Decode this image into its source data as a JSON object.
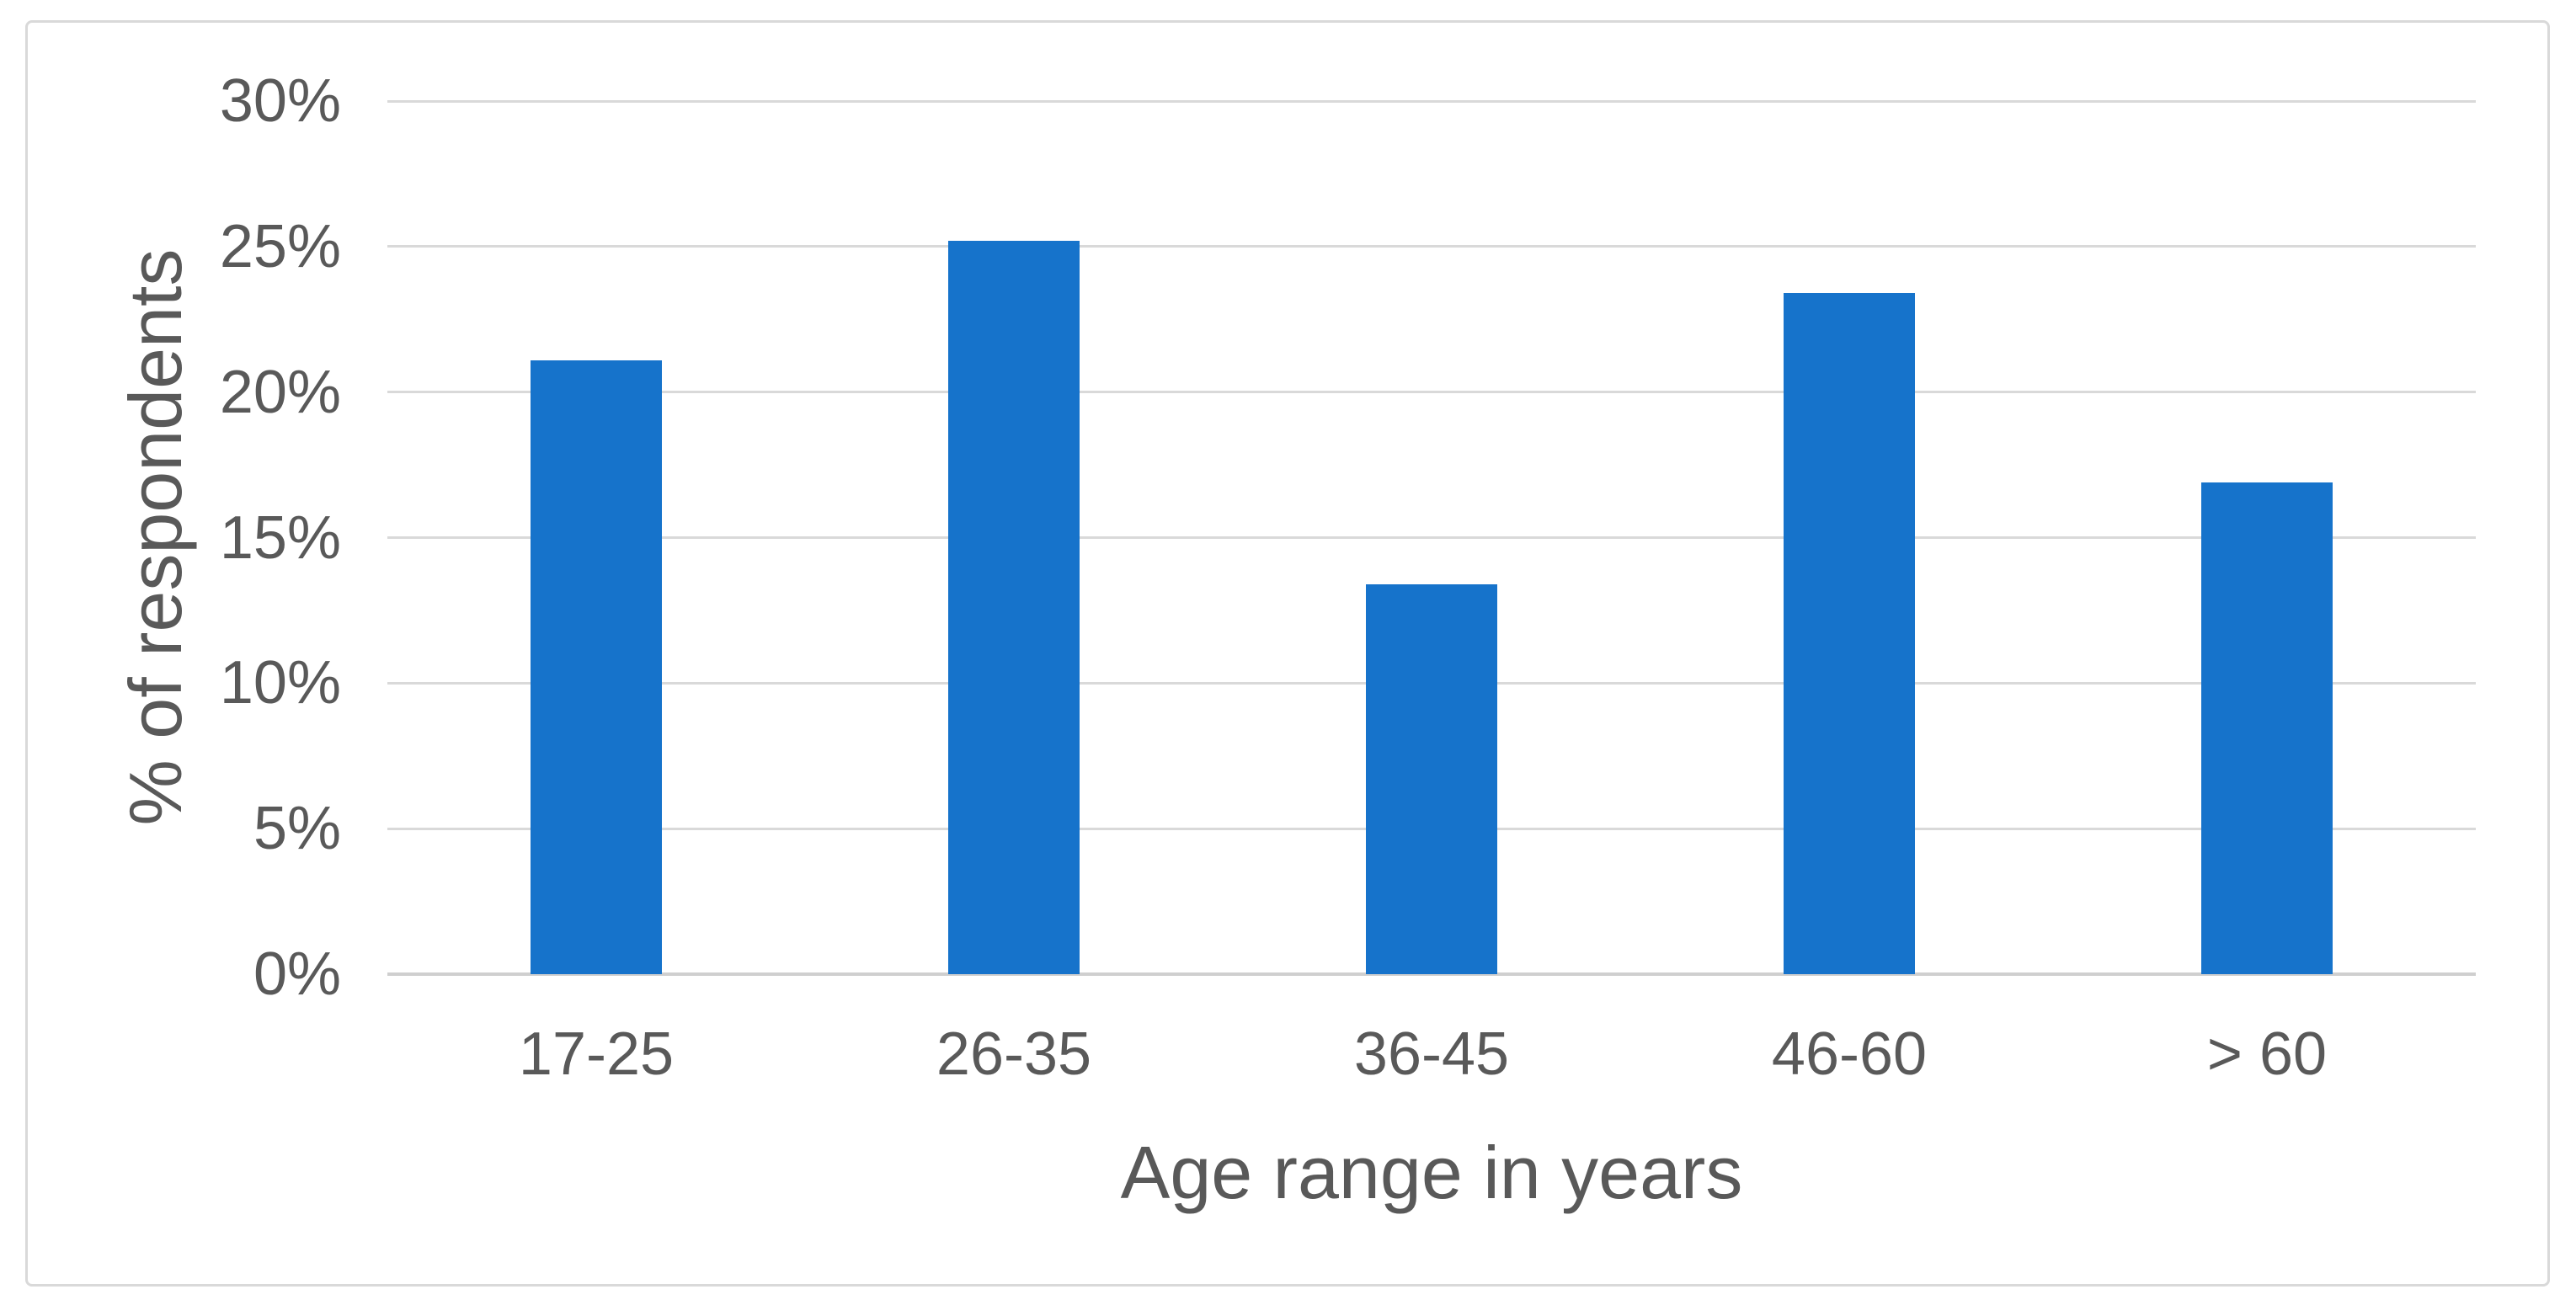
{
  "chart_data": {
    "type": "bar",
    "categories": [
      "17-25",
      "26-35",
      "36-45",
      "46-60",
      "> 60"
    ],
    "values": [
      21.1,
      25.2,
      13.4,
      23.4,
      16.9
    ],
    "title": "",
    "xlabel": "Age range in years",
    "ylabel": "% of respondents",
    "ylim": [
      0,
      30
    ],
    "ytick_step": 5,
    "ytick_labels": [
      "0%",
      "5%",
      "10%",
      "15%",
      "20%",
      "25%",
      "30%"
    ],
    "grid": "horizontal-only",
    "legend": "none",
    "colors": {
      "bar": "#1673CB",
      "gridline": "#D9D9D9",
      "axis_baseline": "#CFCFCF",
      "text": "#595959",
      "frame_border": "#D9D9D9",
      "background": "#FFFFFF"
    }
  }
}
